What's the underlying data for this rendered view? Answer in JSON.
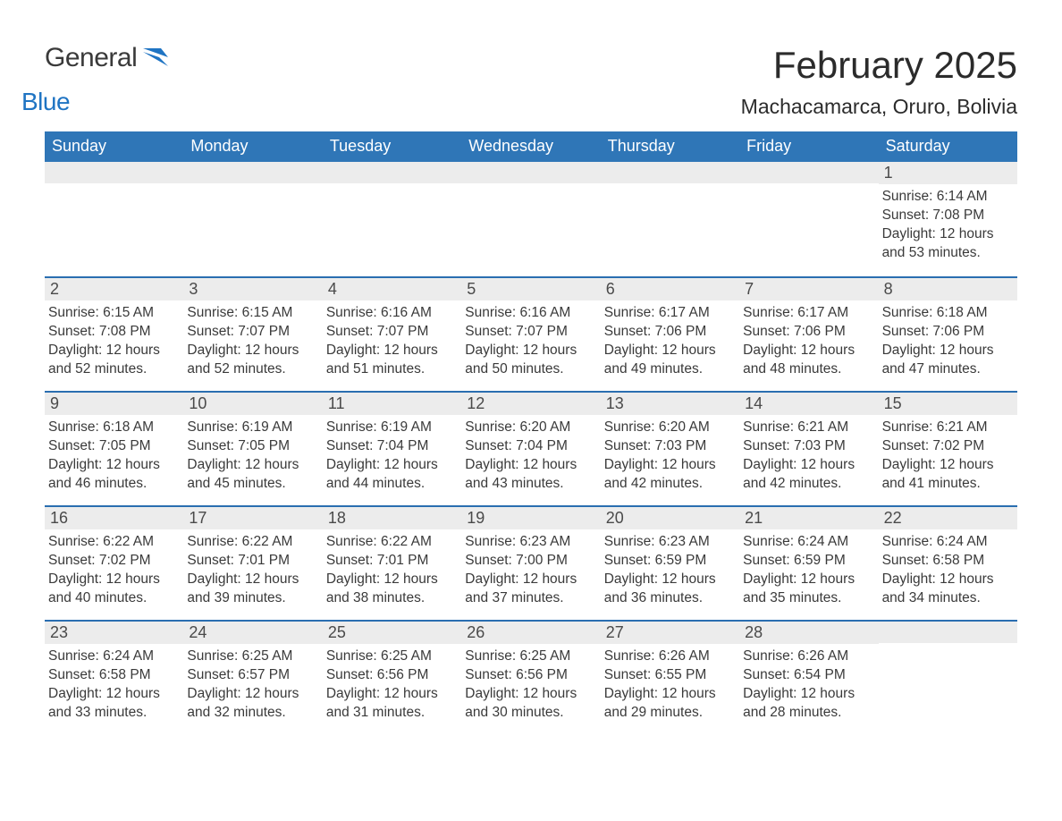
{
  "logo": {
    "general": "General",
    "blue": "Blue"
  },
  "title": "February 2025",
  "location": "Machacamarca, Oruro, Bolivia",
  "colors": {
    "header_blue": "#2f76b7",
    "accent_blue": "#2a6eb0",
    "daynum_bg": "#ececec",
    "logo_blue": "#1f74c3",
    "background": "#ffffff",
    "text": "#2b2b2b"
  },
  "weekdays": [
    "Sunday",
    "Monday",
    "Tuesday",
    "Wednesday",
    "Thursday",
    "Friday",
    "Saturday"
  ],
  "weeks": [
    [
      {
        "day": "",
        "lines": [
          "",
          "",
          "",
          ""
        ]
      },
      {
        "day": "",
        "lines": [
          "",
          "",
          "",
          ""
        ]
      },
      {
        "day": "",
        "lines": [
          "",
          "",
          "",
          ""
        ]
      },
      {
        "day": "",
        "lines": [
          "",
          "",
          "",
          ""
        ]
      },
      {
        "day": "",
        "lines": [
          "",
          "",
          "",
          ""
        ]
      },
      {
        "day": "",
        "lines": [
          "",
          "",
          "",
          ""
        ]
      },
      {
        "day": "1",
        "lines": [
          "Sunrise: 6:14 AM",
          "Sunset: 7:08 PM",
          "Daylight: 12 hours",
          "and 53 minutes."
        ]
      }
    ],
    [
      {
        "day": "2",
        "lines": [
          "Sunrise: 6:15 AM",
          "Sunset: 7:08 PM",
          "Daylight: 12 hours",
          "and 52 minutes."
        ]
      },
      {
        "day": "3",
        "lines": [
          "Sunrise: 6:15 AM",
          "Sunset: 7:07 PM",
          "Daylight: 12 hours",
          "and 52 minutes."
        ]
      },
      {
        "day": "4",
        "lines": [
          "Sunrise: 6:16 AM",
          "Sunset: 7:07 PM",
          "Daylight: 12 hours",
          "and 51 minutes."
        ]
      },
      {
        "day": "5",
        "lines": [
          "Sunrise: 6:16 AM",
          "Sunset: 7:07 PM",
          "Daylight: 12 hours",
          "and 50 minutes."
        ]
      },
      {
        "day": "6",
        "lines": [
          "Sunrise: 6:17 AM",
          "Sunset: 7:06 PM",
          "Daylight: 12 hours",
          "and 49 minutes."
        ]
      },
      {
        "day": "7",
        "lines": [
          "Sunrise: 6:17 AM",
          "Sunset: 7:06 PM",
          "Daylight: 12 hours",
          "and 48 minutes."
        ]
      },
      {
        "day": "8",
        "lines": [
          "Sunrise: 6:18 AM",
          "Sunset: 7:06 PM",
          "Daylight: 12 hours",
          "and 47 minutes."
        ]
      }
    ],
    [
      {
        "day": "9",
        "lines": [
          "Sunrise: 6:18 AM",
          "Sunset: 7:05 PM",
          "Daylight: 12 hours",
          "and 46 minutes."
        ]
      },
      {
        "day": "10",
        "lines": [
          "Sunrise: 6:19 AM",
          "Sunset: 7:05 PM",
          "Daylight: 12 hours",
          "and 45 minutes."
        ]
      },
      {
        "day": "11",
        "lines": [
          "Sunrise: 6:19 AM",
          "Sunset: 7:04 PM",
          "Daylight: 12 hours",
          "and 44 minutes."
        ]
      },
      {
        "day": "12",
        "lines": [
          "Sunrise: 6:20 AM",
          "Sunset: 7:04 PM",
          "Daylight: 12 hours",
          "and 43 minutes."
        ]
      },
      {
        "day": "13",
        "lines": [
          "Sunrise: 6:20 AM",
          "Sunset: 7:03 PM",
          "Daylight: 12 hours",
          "and 42 minutes."
        ]
      },
      {
        "day": "14",
        "lines": [
          "Sunrise: 6:21 AM",
          "Sunset: 7:03 PM",
          "Daylight: 12 hours",
          "and 42 minutes."
        ]
      },
      {
        "day": "15",
        "lines": [
          "Sunrise: 6:21 AM",
          "Sunset: 7:02 PM",
          "Daylight: 12 hours",
          "and 41 minutes."
        ]
      }
    ],
    [
      {
        "day": "16",
        "lines": [
          "Sunrise: 6:22 AM",
          "Sunset: 7:02 PM",
          "Daylight: 12 hours",
          "and 40 minutes."
        ]
      },
      {
        "day": "17",
        "lines": [
          "Sunrise: 6:22 AM",
          "Sunset: 7:01 PM",
          "Daylight: 12 hours",
          "and 39 minutes."
        ]
      },
      {
        "day": "18",
        "lines": [
          "Sunrise: 6:22 AM",
          "Sunset: 7:01 PM",
          "Daylight: 12 hours",
          "and 38 minutes."
        ]
      },
      {
        "day": "19",
        "lines": [
          "Sunrise: 6:23 AM",
          "Sunset: 7:00 PM",
          "Daylight: 12 hours",
          "and 37 minutes."
        ]
      },
      {
        "day": "20",
        "lines": [
          "Sunrise: 6:23 AM",
          "Sunset: 6:59 PM",
          "Daylight: 12 hours",
          "and 36 minutes."
        ]
      },
      {
        "day": "21",
        "lines": [
          "Sunrise: 6:24 AM",
          "Sunset: 6:59 PM",
          "Daylight: 12 hours",
          "and 35 minutes."
        ]
      },
      {
        "day": "22",
        "lines": [
          "Sunrise: 6:24 AM",
          "Sunset: 6:58 PM",
          "Daylight: 12 hours",
          "and 34 minutes."
        ]
      }
    ],
    [
      {
        "day": "23",
        "lines": [
          "Sunrise: 6:24 AM",
          "Sunset: 6:58 PM",
          "Daylight: 12 hours",
          "and 33 minutes."
        ]
      },
      {
        "day": "24",
        "lines": [
          "Sunrise: 6:25 AM",
          "Sunset: 6:57 PM",
          "Daylight: 12 hours",
          "and 32 minutes."
        ]
      },
      {
        "day": "25",
        "lines": [
          "Sunrise: 6:25 AM",
          "Sunset: 6:56 PM",
          "Daylight: 12 hours",
          "and 31 minutes."
        ]
      },
      {
        "day": "26",
        "lines": [
          "Sunrise: 6:25 AM",
          "Sunset: 6:56 PM",
          "Daylight: 12 hours",
          "and 30 minutes."
        ]
      },
      {
        "day": "27",
        "lines": [
          "Sunrise: 6:26 AM",
          "Sunset: 6:55 PM",
          "Daylight: 12 hours",
          "and 29 minutes."
        ]
      },
      {
        "day": "28",
        "lines": [
          "Sunrise: 6:26 AM",
          "Sunset: 6:54 PM",
          "Daylight: 12 hours",
          "and 28 minutes."
        ]
      },
      {
        "day": "",
        "lines": [
          "",
          "",
          "",
          ""
        ]
      }
    ]
  ]
}
